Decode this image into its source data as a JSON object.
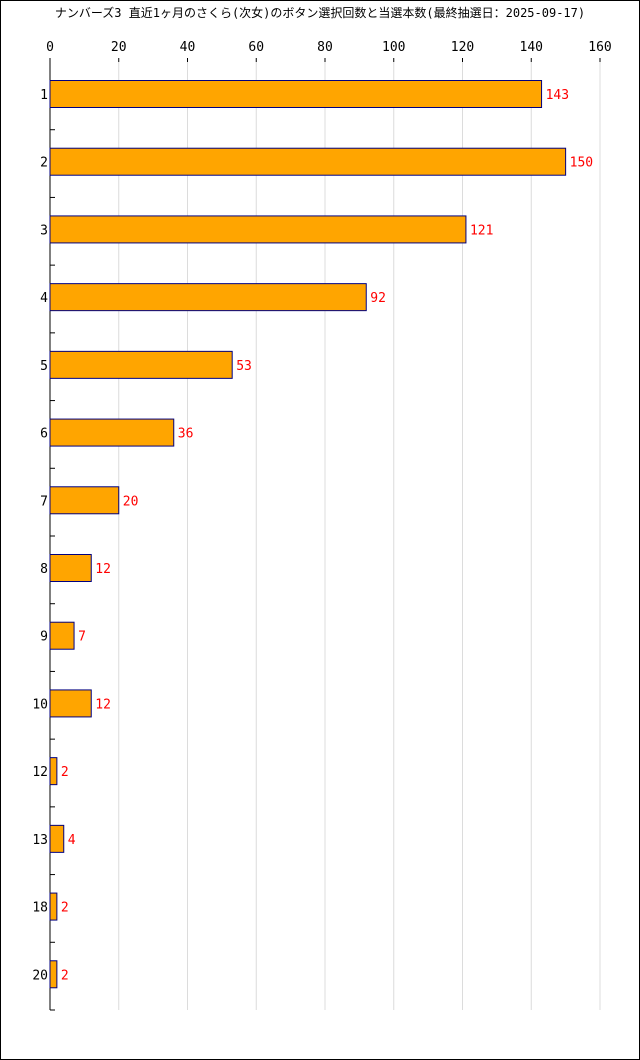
{
  "chart_data": {
    "type": "bar",
    "orientation": "horizontal",
    "title": "ナンバーズ3 直近1ヶ月のさくら(次女)のボタン選択回数と当選本数(最終抽選日：2025-09-17)",
    "categories": [
      "1",
      "2",
      "3",
      "4",
      "5",
      "6",
      "7",
      "8",
      "9",
      "10",
      "12",
      "13",
      "18",
      "20"
    ],
    "values": [
      143,
      150,
      121,
      92,
      53,
      36,
      20,
      12,
      7,
      12,
      2,
      4,
      2,
      2
    ],
    "xlim": [
      0,
      160
    ],
    "x_ticks": [
      0,
      20,
      40,
      60,
      80,
      100,
      120,
      140,
      160
    ],
    "grid": true,
    "bar_color": "#ffa500",
    "bar_edge_color": "#000080",
    "value_label_color": "#ff0000"
  }
}
